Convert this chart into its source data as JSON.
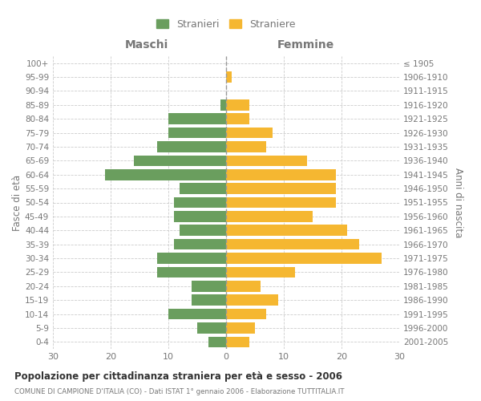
{
  "age_groups": [
    "0-4",
    "5-9",
    "10-14",
    "15-19",
    "20-24",
    "25-29",
    "30-34",
    "35-39",
    "40-44",
    "45-49",
    "50-54",
    "55-59",
    "60-64",
    "65-69",
    "70-74",
    "75-79",
    "80-84",
    "85-89",
    "90-94",
    "95-99",
    "100+"
  ],
  "birth_years": [
    "2001-2005",
    "1996-2000",
    "1991-1995",
    "1986-1990",
    "1981-1985",
    "1976-1980",
    "1971-1975",
    "1966-1970",
    "1961-1965",
    "1956-1960",
    "1951-1955",
    "1946-1950",
    "1941-1945",
    "1936-1940",
    "1931-1935",
    "1926-1930",
    "1921-1925",
    "1916-1920",
    "1911-1915",
    "1906-1910",
    "≤ 1905"
  ],
  "males": [
    3,
    5,
    10,
    6,
    6,
    12,
    12,
    9,
    8,
    9,
    9,
    8,
    21,
    16,
    12,
    10,
    10,
    1,
    0,
    0,
    0
  ],
  "females": [
    4,
    5,
    7,
    9,
    6,
    12,
    27,
    23,
    21,
    15,
    19,
    19,
    19,
    14,
    7,
    8,
    4,
    4,
    0,
    1,
    0
  ],
  "male_color": "#6a9e5e",
  "female_color": "#f5b731",
  "background_color": "#ffffff",
  "grid_color": "#cccccc",
  "title": "Popolazione per cittadinanza straniera per età e sesso - 2006",
  "subtitle": "COMUNE DI CAMPIONE D'ITALIA (CO) - Dati ISTAT 1° gennaio 2006 - Elaborazione TUTTITALIA.IT",
  "ylabel_left": "Fasce di età",
  "ylabel_right": "Anni di nascita",
  "xlabel_left": "Maschi",
  "xlabel_right": "Femmine",
  "legend_male": "Stranieri",
  "legend_female": "Straniere",
  "xlim": 30,
  "label_color": "#777777"
}
